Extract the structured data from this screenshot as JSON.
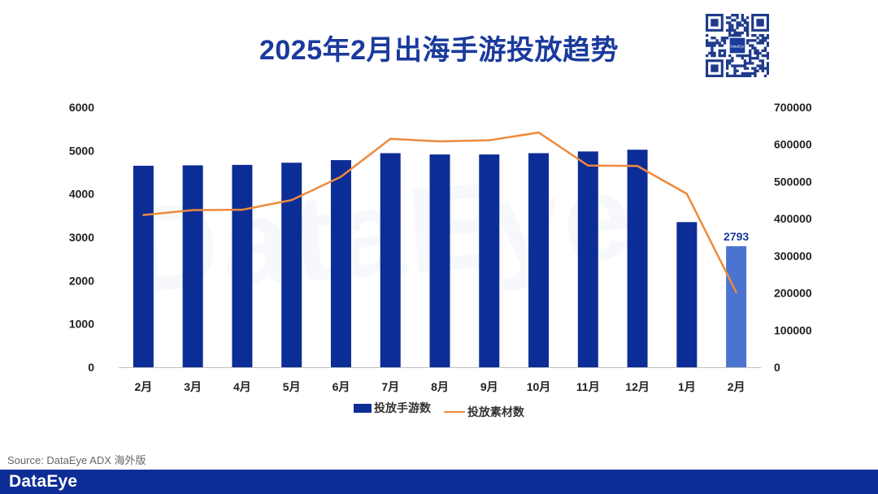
{
  "title": "2025年2月出海手游投放趋势",
  "source": "Source: DataEye ADX 海外版",
  "brand": "DataEye",
  "watermark": "DataEye",
  "qr_center_label": "DataEye",
  "colors": {
    "bar": "#0d2d96",
    "bar_highlight": "#4a74d0",
    "line": "#ee8a3c",
    "footer": "#0d2d96",
    "title": "#1a3a9c"
  },
  "chart_data": {
    "type": "bar+line",
    "categories": [
      "2月",
      "3月",
      "4月",
      "5月",
      "6月",
      "7月",
      "8月",
      "9月",
      "10月",
      "11月",
      "12月",
      "1月",
      "2月"
    ],
    "series": [
      {
        "name": "投放手游数",
        "type": "bar",
        "axis": "left",
        "values": [
          4650,
          4660,
          4670,
          4720,
          4780,
          4940,
          4910,
          4910,
          4940,
          4980,
          5020,
          3350,
          2793
        ]
      },
      {
        "name": "投放素材数",
        "type": "line",
        "axis": "right",
        "values": [
          410000,
          423000,
          424000,
          450000,
          513000,
          615000,
          608000,
          611000,
          632000,
          543000,
          542000,
          467000,
          202000
        ]
      }
    ],
    "y_left": {
      "min": 0,
      "max": 6000,
      "ticks": [
        "0",
        "1000",
        "2000",
        "3000",
        "4000",
        "5000",
        "6000"
      ]
    },
    "y_right": {
      "min": 0,
      "max": 700000,
      "ticks": [
        "0",
        "100000",
        "200000",
        "300000",
        "400000",
        "500000",
        "600000",
        "700000"
      ]
    },
    "data_labels": [
      {
        "category_index": 12,
        "series": "投放手游数",
        "text": "2793"
      }
    ],
    "legend": [
      "投放手游数",
      "投放素材数"
    ],
    "legend_position": "bottom"
  }
}
